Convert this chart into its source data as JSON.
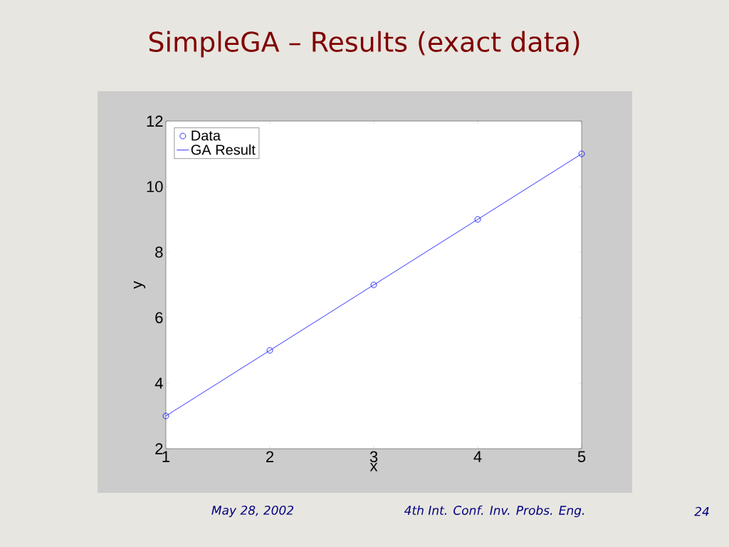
{
  "chart_data": {
    "type": "scatter",
    "title": "SimpleGA – Results (exact data)",
    "xlabel": "x",
    "ylabel": "y",
    "xlim": [
      1,
      5
    ],
    "xticks": [
      1,
      2,
      3,
      4,
      5
    ],
    "ylim": [
      2,
      12
    ],
    "yticks": [
      2,
      4,
      6,
      8,
      10,
      12
    ],
    "legend": "top left",
    "grid": false,
    "series": [
      {
        "name": "Data",
        "marker": "circle",
        "color": "#0000ff",
        "x": [
          1,
          2,
          3,
          4,
          5
        ],
        "values": [
          3,
          5,
          7,
          9,
          11
        ]
      },
      {
        "name": "GA Result",
        "type": "line",
        "color": "#0000ff",
        "line_style": "solid",
        "x": [
          1,
          5
        ],
        "values": [
          3,
          11
        ]
      }
    ],
    "annotations": [
      "May 28, 2002",
      "4th Int. Conf. Inv. Probs. Eng.",
      "24"
    ]
  }
}
